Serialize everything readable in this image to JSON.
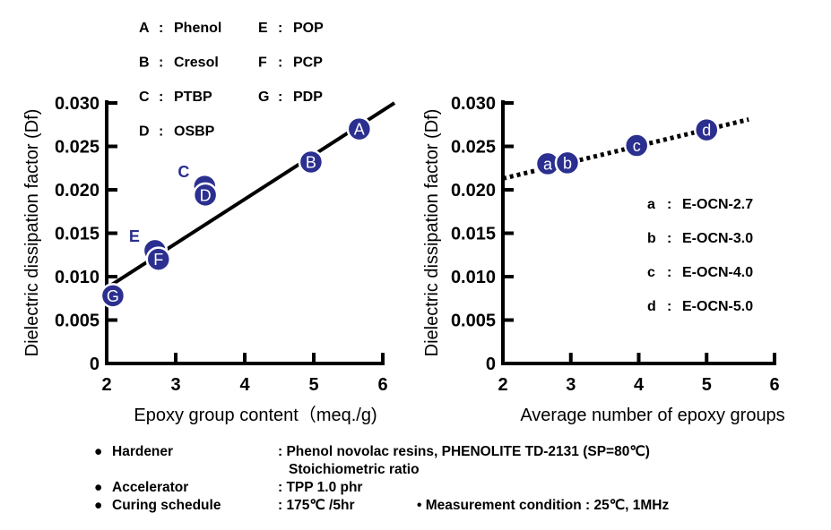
{
  "chart_data": [
    {
      "type": "scatter",
      "xlabel": "Epoxy group content（meq./g)",
      "ylabel": "Dielectric dissipation factor (Df)",
      "xlim": [
        2,
        6
      ],
      "ylim": [
        0,
        0.03
      ],
      "xticks": [
        "2",
        "3",
        "4",
        "5",
        "6"
      ],
      "yticks": [
        "0",
        "0.005",
        "0.010",
        "0.015",
        "0.020",
        "0.025",
        "0.030"
      ],
      "points": [
        {
          "label": "C",
          "x": 3.42,
          "y": 0.0204
        },
        {
          "label": "E",
          "x": 2.7,
          "y": 0.013
        },
        {
          "label": "A",
          "x": 5.66,
          "y": 0.027
        },
        {
          "label": "B",
          "x": 4.96,
          "y": 0.0232
        },
        {
          "label": "D",
          "x": 3.43,
          "y": 0.0194
        },
        {
          "label": "F",
          "x": 2.75,
          "y": 0.012
        },
        {
          "label": "G",
          "x": 2.09,
          "y": 0.0078
        }
      ],
      "fit_line": {
        "style": "solid",
        "from": [
          2,
          0.0087
        ],
        "to": [
          6.17,
          0.03
        ]
      },
      "legend": [
        {
          "key": "A",
          "sep": ":",
          "name": "Phenol"
        },
        {
          "key": "B",
          "sep": ":",
          "name": "Cresol"
        },
        {
          "key": "C",
          "sep": ":",
          "name": "PTBP"
        },
        {
          "key": "D",
          "sep": ":",
          "name": "OSBP"
        },
        {
          "key": "E",
          "sep": ":",
          "name": "POP"
        },
        {
          "key": "F",
          "sep": ":",
          "name": "PCP"
        },
        {
          "key": "G",
          "sep": ":",
          "name": "PDP"
        }
      ],
      "legend_placement": "top-left",
      "point_color": "#2b2f8f"
    },
    {
      "type": "scatter",
      "xlabel": "Average number of epoxy groups",
      "ylabel": "Dielectric dissipation factor (Df)",
      "xlim": [
        2,
        6
      ],
      "ylim": [
        0,
        0.03
      ],
      "xticks": [
        "2",
        "3",
        "4",
        "5",
        "6"
      ],
      "yticks": [
        "0",
        "0.005",
        "0.010",
        "0.015",
        "0.020",
        "0.025",
        "0.030"
      ],
      "points": [
        {
          "label": "a",
          "x": 2.66,
          "y": 0.023
        },
        {
          "label": "b",
          "x": 2.95,
          "y": 0.0231
        },
        {
          "label": "c",
          "x": 3.97,
          "y": 0.0251
        },
        {
          "label": "d",
          "x": 5.0,
          "y": 0.0269
        }
      ],
      "fit_line": {
        "style": "dotted",
        "from": [
          2,
          0.0213
        ],
        "to": [
          5.62,
          0.0281
        ]
      },
      "legend": [
        {
          "key": "a",
          "sep": ":",
          "name": "E-OCN-2.7"
        },
        {
          "key": "b",
          "sep": ":",
          "name": "E-OCN-3.0"
        },
        {
          "key": "c",
          "sep": ":",
          "name": "E-OCN-4.0"
        },
        {
          "key": "d",
          "sep": ":",
          "name": "E-OCN-5.0"
        }
      ],
      "legend_placement": "right",
      "point_color": "#2b2f8f"
    }
  ],
  "notes": {
    "bullet": "●",
    "hardener_key": "Hardener",
    "hardener_val": ": Phenol novolac resins, PHENOLITE TD-2131 (SP=80℃)",
    "hardener_val2": "Stoichiometric ratio",
    "accelerator_key": "Accelerator",
    "accelerator_val": ": TPP  1.0 phr",
    "curing_key": "Curing schedule",
    "curing_val": ": 175℃ /5hr",
    "measurement": "• Measurement condition : 25℃, 1MHz"
  }
}
